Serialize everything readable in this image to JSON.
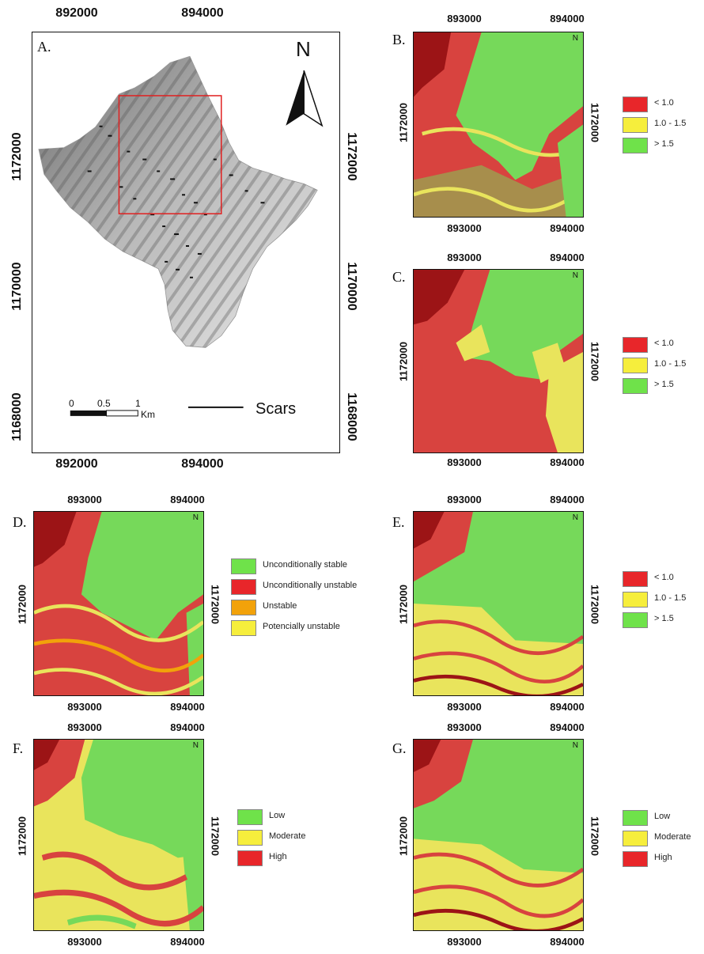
{
  "colors": {
    "red": "#e8262a",
    "yellow": "#f6ee3c",
    "green": "#6fe24a",
    "orange": "#f2a20a",
    "dark_red": "#9c1416",
    "map_red": "#d8433f",
    "map_green": "#76d95a",
    "map_yellow": "#e9e45c"
  },
  "panel_a": {
    "label": "A.",
    "x_ticks": [
      "892000",
      "894000"
    ],
    "y_ticks": [
      "1172000",
      "1170000",
      "1168000"
    ],
    "north": "N",
    "scale_labels": [
      "0",
      "0.5",
      "1"
    ],
    "scale_unit": "Km",
    "scars_label": "Scars"
  },
  "panels": [
    {
      "id": "B",
      "label": "B.",
      "x_ticks": [
        "893000",
        "894000"
      ],
      "y_tick": "1172000",
      "north": "N",
      "legend": [
        {
          "label": "< 1.0",
          "color": "#e8262a"
        },
        {
          "label": "1.0 - 1.5",
          "color": "#f6ee3c"
        },
        {
          "label": "> 1.5",
          "color": "#6fe24a"
        }
      ]
    },
    {
      "id": "C",
      "label": "C.",
      "x_ticks": [
        "893000",
        "894000"
      ],
      "y_tick": "1172000",
      "north": "N",
      "legend": [
        {
          "label": "< 1.0",
          "color": "#e8262a"
        },
        {
          "label": "1.0 - 1.5",
          "color": "#f6ee3c"
        },
        {
          "label": "> 1.5",
          "color": "#6fe24a"
        }
      ]
    },
    {
      "id": "D",
      "label": "D.",
      "x_ticks": [
        "893000",
        "894000"
      ],
      "y_tick": "1172000",
      "north": "N",
      "legend": [
        {
          "label": "Unconditionally stable",
          "color": "#6fe24a"
        },
        {
          "label": "Unconditionally unstable",
          "color": "#e8262a"
        },
        {
          "label": "Unstable",
          "color": "#f2a20a"
        },
        {
          "label": "Potencially unstable",
          "color": "#f6ee3c"
        }
      ]
    },
    {
      "id": "E",
      "label": "E.",
      "x_ticks": [
        "893000",
        "894000"
      ],
      "y_tick": "1172000",
      "north": "N",
      "legend": [
        {
          "label": "< 1.0",
          "color": "#e8262a"
        },
        {
          "label": "1.0 - 1.5",
          "color": "#f6ee3c"
        },
        {
          "label": "> 1.5",
          "color": "#6fe24a"
        }
      ]
    },
    {
      "id": "F",
      "label": "F.",
      "x_ticks": [
        "893000",
        "894000"
      ],
      "y_tick": "1172000",
      "north": "N",
      "legend": [
        {
          "label": "Low",
          "color": "#6fe24a"
        },
        {
          "label": "Moderate",
          "color": "#f6ee3c"
        },
        {
          "label": "High",
          "color": "#e8262a"
        }
      ]
    },
    {
      "id": "G",
      "label": "G.",
      "x_ticks": [
        "893000",
        "894000"
      ],
      "y_tick": "1172000",
      "north": "N",
      "legend": [
        {
          "label": "Low",
          "color": "#6fe24a"
        },
        {
          "label": "Moderate",
          "color": "#f6ee3c"
        },
        {
          "label": "High",
          "color": "#e8262a"
        }
      ]
    }
  ]
}
